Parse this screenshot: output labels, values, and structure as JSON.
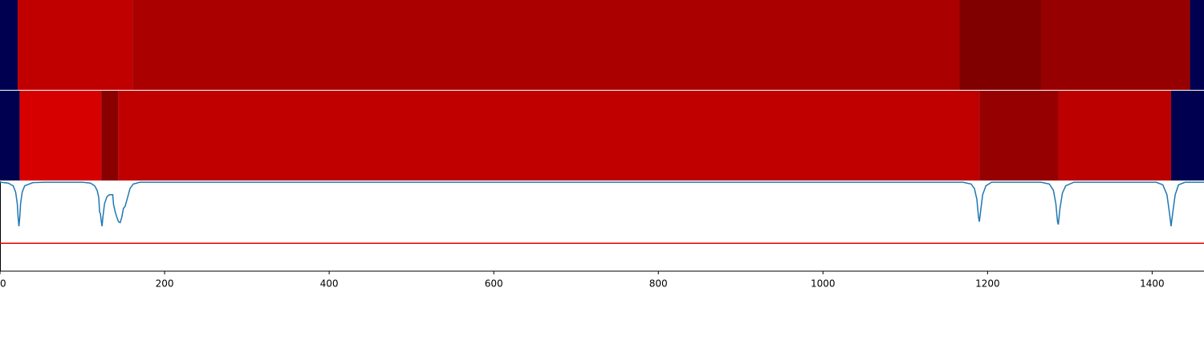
{
  "chart_data": {
    "type": "line",
    "xlim": [
      0,
      1463
    ],
    "xticks": [
      0,
      200,
      400,
      600,
      800,
      1000,
      1200,
      1400
    ],
    "ylim": [
      0,
      1
    ],
    "bands": [
      [
        {
          "start": 0,
          "end": 21.5,
          "color": "#000050"
        },
        {
          "start": 21.5,
          "end": 161,
          "color": "#c00000"
        },
        {
          "start": 161,
          "end": 1166,
          "color": "#aa0000"
        },
        {
          "start": 1166,
          "end": 1265,
          "color": "#800000"
        },
        {
          "start": 1265,
          "end": 1446,
          "color": "#960000"
        },
        {
          "start": 1446,
          "end": 1463,
          "color": "#000050"
        }
      ],
      [
        {
          "start": 0,
          "end": 24,
          "color": "#000050"
        },
        {
          "start": 24,
          "end": 123,
          "color": "#d70000"
        },
        {
          "start": 123,
          "end": 144,
          "color": "#8a0000"
        },
        {
          "start": 144,
          "end": 1190,
          "color": "#c00000"
        },
        {
          "start": 1190,
          "end": 1286,
          "color": "#960000"
        },
        {
          "start": 1286,
          "end": 1423,
          "color": "#bc0000"
        },
        {
          "start": 1423,
          "end": 1463,
          "color": "#000050"
        }
      ]
    ],
    "color": "#1f77b4",
    "x": [
      0,
      10,
      16,
      19,
      21,
      22,
      23,
      24,
      25,
      27,
      30,
      40,
      55,
      100,
      110,
      115,
      118,
      120,
      121,
      122,
      123,
      124,
      125,
      127,
      130,
      133,
      137,
      138,
      140,
      142,
      144,
      146,
      148,
      150,
      152,
      155,
      158,
      162,
      170,
      300,
      1170,
      1180,
      1184,
      1187,
      1189,
      1190,
      1192,
      1194,
      1198,
      1205,
      1265,
      1275,
      1280,
      1283,
      1285,
      1286,
      1288,
      1291,
      1295,
      1305,
      1405,
      1413,
      1418,
      1421,
      1423,
      1425,
      1428,
      1432,
      1440,
      1463
    ],
    "values": [
      0.99,
      0.98,
      0.95,
      0.88,
      0.75,
      0.6,
      0.5,
      0.6,
      0.75,
      0.88,
      0.95,
      0.985,
      0.99,
      0.99,
      0.98,
      0.95,
      0.9,
      0.82,
      0.66,
      0.64,
      0.56,
      0.5,
      0.6,
      0.75,
      0.83,
      0.85,
      0.85,
      0.74,
      0.66,
      0.6,
      0.55,
      0.54,
      0.6,
      0.7,
      0.72,
      0.82,
      0.92,
      0.97,
      0.99,
      0.99,
      0.99,
      0.97,
      0.92,
      0.8,
      0.6,
      0.55,
      0.7,
      0.85,
      0.95,
      0.99,
      0.99,
      0.97,
      0.9,
      0.75,
      0.55,
      0.52,
      0.7,
      0.87,
      0.95,
      0.99,
      0.99,
      0.96,
      0.85,
      0.65,
      0.5,
      0.65,
      0.85,
      0.96,
      0.99,
      0.99
    ],
    "hline": {
      "value": 0.31,
      "color": "#e00000"
    }
  }
}
